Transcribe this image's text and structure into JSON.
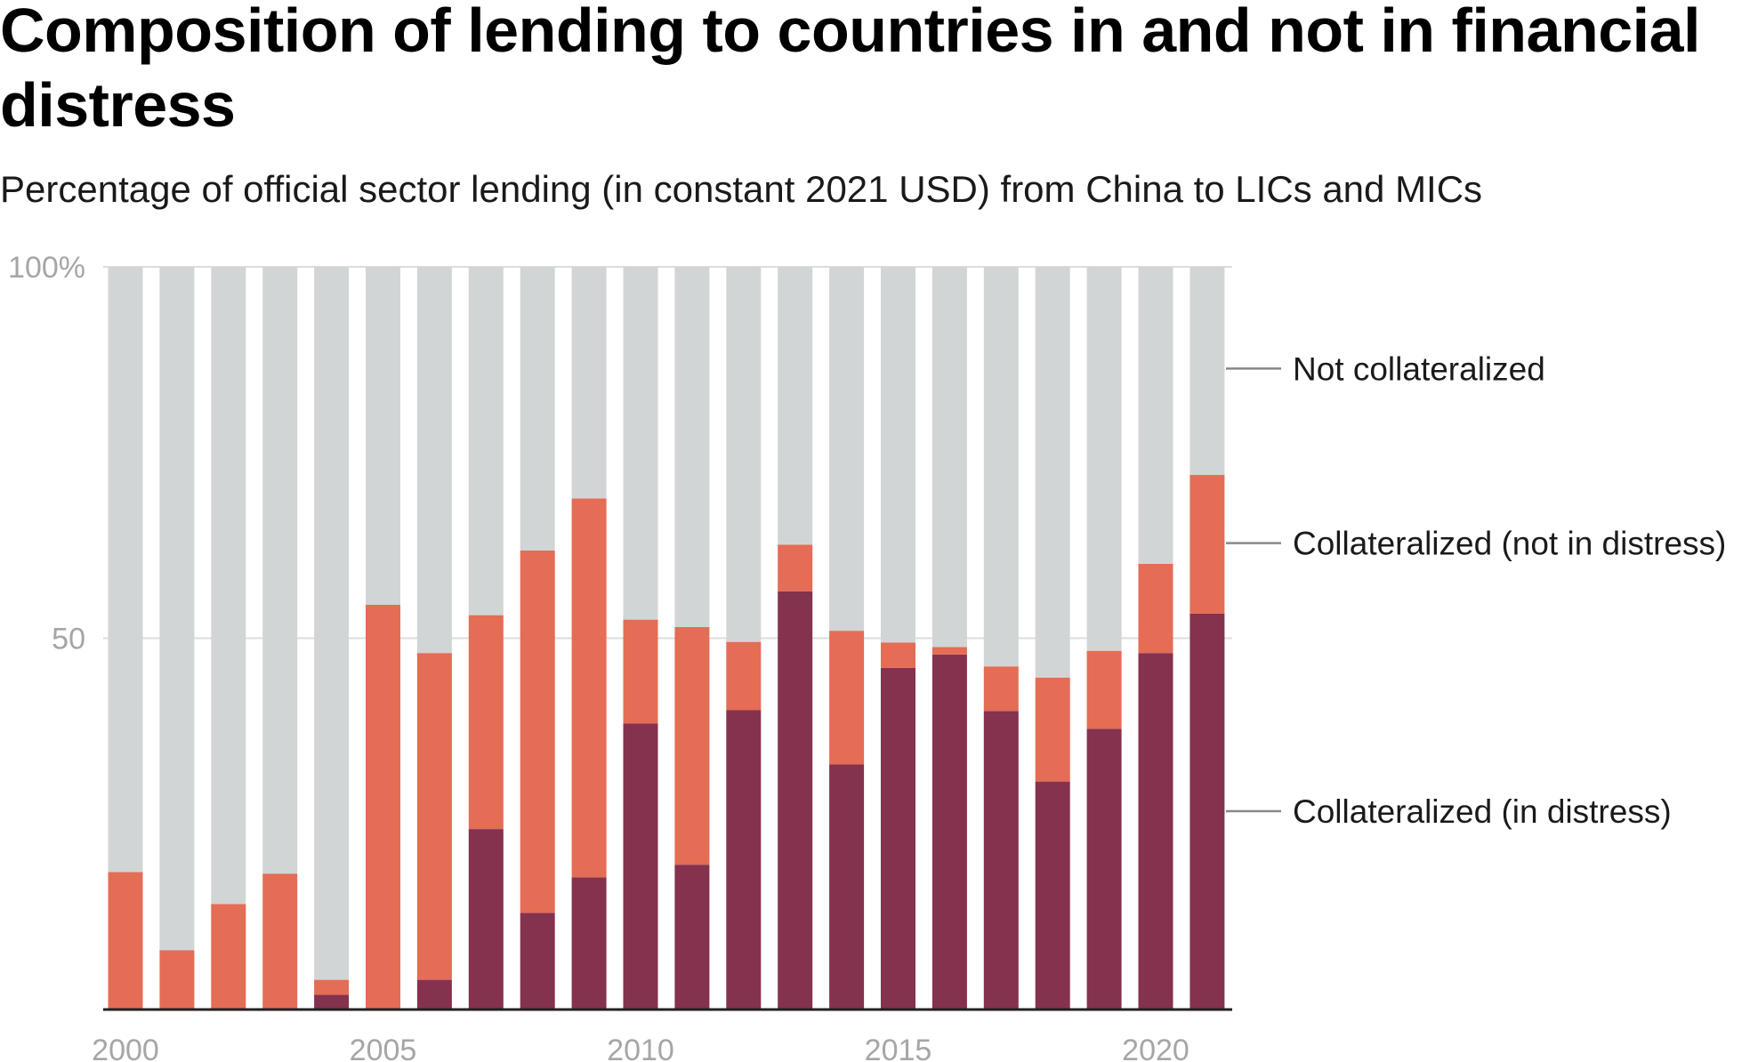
{
  "title": "Composition of lending to countries in and not in financial distress",
  "subtitle": "Percentage of official sector lending (in constant 2021 USD) from China to LICs and MICs",
  "colors": {
    "not_collateralized": "#d1d5d6",
    "collateralized_not_distress": "#e56c55",
    "collateralized_distress": "#84324e",
    "grid": "#dddddd",
    "axis": "#222222",
    "tick": "#a6a6a6",
    "leader": "#888888"
  },
  "chart_data": {
    "type": "bar",
    "stacked": true,
    "x": [
      2000,
      2001,
      2002,
      2003,
      2004,
      2005,
      2006,
      2007,
      2008,
      2009,
      2010,
      2011,
      2012,
      2013,
      2014,
      2015,
      2016,
      2017,
      2018,
      2019,
      2020,
      2021
    ],
    "series": [
      {
        "name": "Collateralized (in distress)",
        "key": "collateralized_distress",
        "values": [
          0,
          0,
          0,
          0,
          2,
          0,
          4,
          24.3,
          13,
          17.8,
          38.5,
          19.5,
          40.3,
          56.3,
          33,
          46,
          47.8,
          40.2,
          30.7,
          37.8,
          48,
          53.3
        ]
      },
      {
        "name": "Collateralized (not in distress)",
        "key": "collateralized_not_distress",
        "values": [
          18.5,
          8,
          14.2,
          18.3,
          2,
          54.5,
          44,
          28.8,
          48.8,
          51,
          14,
          32,
          9.2,
          6.3,
          18,
          3.4,
          1,
          6,
          14,
          10.5,
          12,
          18.7
        ]
      },
      {
        "name": "Not collateralized",
        "key": "not_collateralized",
        "values": [
          81.5,
          92,
          85.8,
          81.7,
          96,
          45.5,
          52,
          46.9,
          38.2,
          31.2,
          47.5,
          48.5,
          50.5,
          37.4,
          49,
          50.6,
          51.2,
          53.8,
          55.3,
          51.7,
          40,
          28
        ]
      }
    ],
    "ylim": [
      0,
      100
    ],
    "y_ticks": [
      {
        "value": 100,
        "label": "100%"
      },
      {
        "value": 50,
        "label": "50"
      }
    ],
    "x_ticks": [
      {
        "value": 2000,
        "label": "2000"
      },
      {
        "value": 2005,
        "label": "2005"
      },
      {
        "value": 2010,
        "label": "2010"
      },
      {
        "value": 2015,
        "label": "2015"
      },
      {
        "value": 2020,
        "label": "2020"
      }
    ],
    "grid": true,
    "legend_placement": "right, direct labels",
    "legend": [
      {
        "label": "Not collateralized",
        "key": "not_collateralized",
        "anchor_value": 86.3
      },
      {
        "label": "Collateralized (not in distress)",
        "key": "collateralized_not_distress",
        "anchor_value": 62.8
      },
      {
        "label": "Collateralized (in distress)",
        "key": "collateralized_distress",
        "anchor_value": 26.7
      }
    ]
  }
}
